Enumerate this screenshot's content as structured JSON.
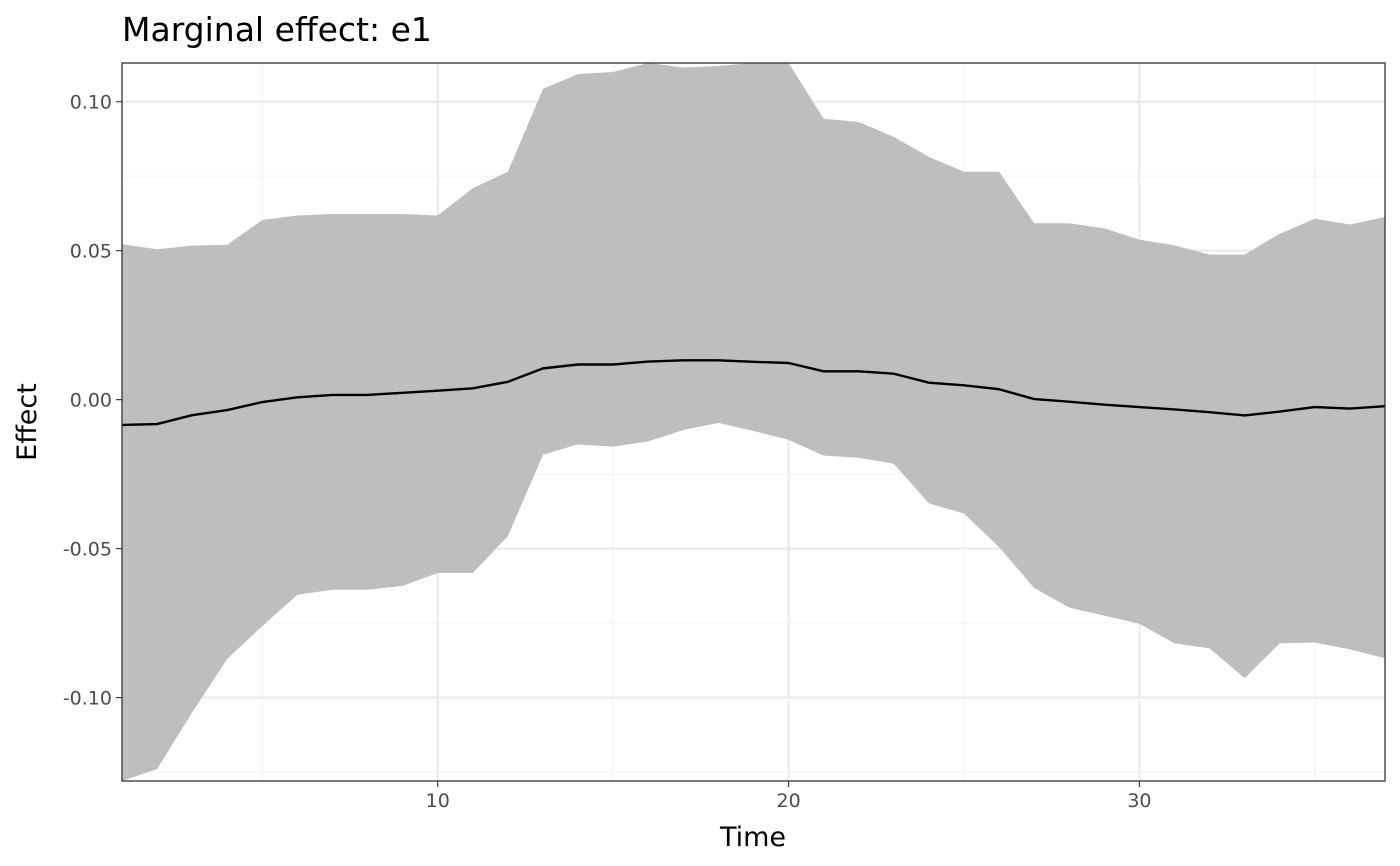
{
  "chart_data": {
    "type": "area",
    "title": "Marginal effect: e1",
    "xlabel": "Time",
    "ylabel": "Effect",
    "xlim": [
      1,
      37
    ],
    "ylim": [
      -0.128,
      0.113
    ],
    "x_ticks": [
      10,
      20,
      30
    ],
    "x_tick_labels": [
      "10",
      "20",
      "30"
    ],
    "y_ticks": [
      0.1,
      0.05,
      0.0,
      -0.05,
      -0.1
    ],
    "y_tick_labels": [
      "0.10",
      "0.05",
      "0.00",
      "-0.05",
      "-0.10"
    ],
    "grid": true,
    "legend": "none",
    "x": [
      1,
      2,
      3,
      4,
      5,
      6,
      7,
      8,
      9,
      10,
      11,
      12,
      13,
      14,
      15,
      16,
      17,
      18,
      19,
      20,
      21,
      22,
      23,
      24,
      25,
      26,
      27,
      28,
      29,
      30,
      31,
      32,
      33,
      34,
      35,
      36,
      37
    ],
    "series": [
      {
        "values": [
          -0.0085,
          -0.0082,
          -0.0052,
          -0.0035,
          -0.0008,
          0.0008,
          0.0016,
          0.0016,
          0.0023,
          0.003,
          0.0038,
          0.006,
          0.0105,
          0.0118,
          0.0118,
          0.0128,
          0.0132,
          0.0132,
          0.0127,
          0.0123,
          0.0095,
          0.0095,
          0.0087,
          0.0057,
          0.0048,
          0.0035,
          0.0002,
          -0.0007,
          -0.0017,
          -0.0025,
          -0.0033,
          -0.0042,
          -0.0053,
          -0.004,
          -0.0025,
          -0.003,
          -0.0022
        ],
        "lower": [
          -0.128,
          -0.124,
          -0.105,
          -0.087,
          -0.076,
          -0.0655,
          -0.0638,
          -0.0638,
          -0.0625,
          -0.0582,
          -0.0582,
          -0.0458,
          -0.0185,
          -0.015,
          -0.0158,
          -0.014,
          -0.0102,
          -0.0078,
          -0.0105,
          -0.0135,
          -0.0188,
          -0.0195,
          -0.0215,
          -0.0348,
          -0.0382,
          -0.0495,
          -0.0632,
          -0.0698,
          -0.0725,
          -0.0752,
          -0.0818,
          -0.0835,
          -0.0935,
          -0.0818,
          -0.0815,
          -0.0838,
          -0.0868
        ],
        "upper": [
          0.0522,
          0.0505,
          0.0517,
          0.052,
          0.0603,
          0.0618,
          0.0623,
          0.0623,
          0.0623,
          0.0618,
          0.071,
          0.0765,
          0.1043,
          0.1093,
          0.11,
          0.113,
          0.1115,
          0.112,
          0.113,
          0.113,
          0.0943,
          0.0932,
          0.0882,
          0.0815,
          0.0765,
          0.0765,
          0.0592,
          0.0592,
          0.0575,
          0.0537,
          0.0518,
          0.0487,
          0.0487,
          0.0557,
          0.0607,
          0.0588,
          0.0613
        ]
      }
    ],
    "colors": {
      "band": "#bebebe",
      "line": "#000000",
      "panel_border": "#333333",
      "grid": "#ebebeb",
      "tick_text": "#4d4d4d"
    }
  }
}
